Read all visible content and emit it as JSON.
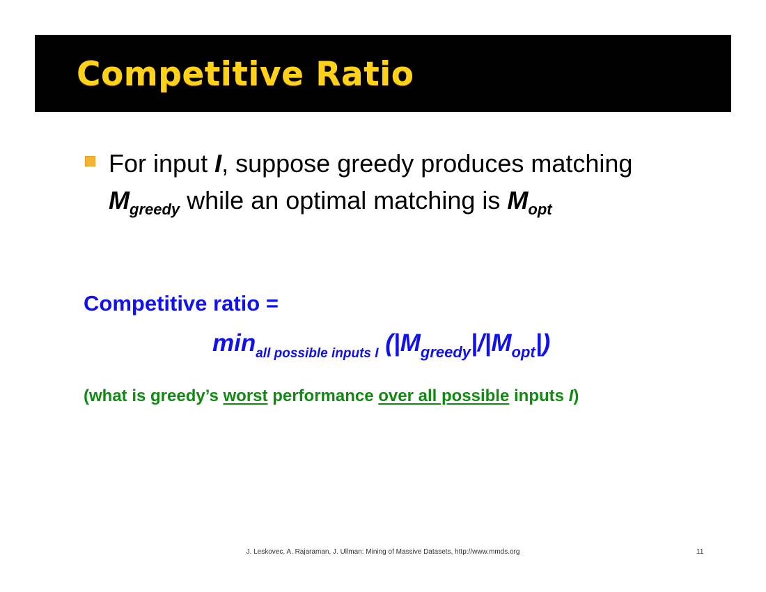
{
  "slide": {
    "title": "Competitive Ratio",
    "bullet": {
      "part1": "For input ",
      "input_var": "I",
      "part2": ", suppose greedy produces matching ",
      "m_greedy_base": "M",
      "m_greedy_sub": "greedy",
      "part3": " while an optimal matching is ",
      "m_opt_base": "M",
      "m_opt_sub": "opt"
    },
    "ratio_heading": "Competitive ratio =",
    "formula": {
      "min_text": "min",
      "min_sub": "all possible inputs I",
      "open": " (|",
      "m_greedy_base": "M",
      "m_greedy_sub": "greedy",
      "middle": "|/|",
      "m_opt_base": "M",
      "m_opt_sub": "opt",
      "close": "|)"
    },
    "note": {
      "part1": "(what is greedy’s ",
      "worst": "worst",
      "part2": " performance ",
      "over_all": "over all possible",
      "part3": " inputs ",
      "input_var": "I",
      "part4": ")"
    },
    "footer": "J. Leskovec, A. Rajaraman, J. Ullman: Mining of Massive Datasets, http://www.mmds.org",
    "page_number": "11",
    "colors": {
      "title_bar": "#000000",
      "title_text": "#ffd21a",
      "bullet_marker": "#f5b335",
      "formula": "#1111ee",
      "note": "#118a11"
    }
  }
}
